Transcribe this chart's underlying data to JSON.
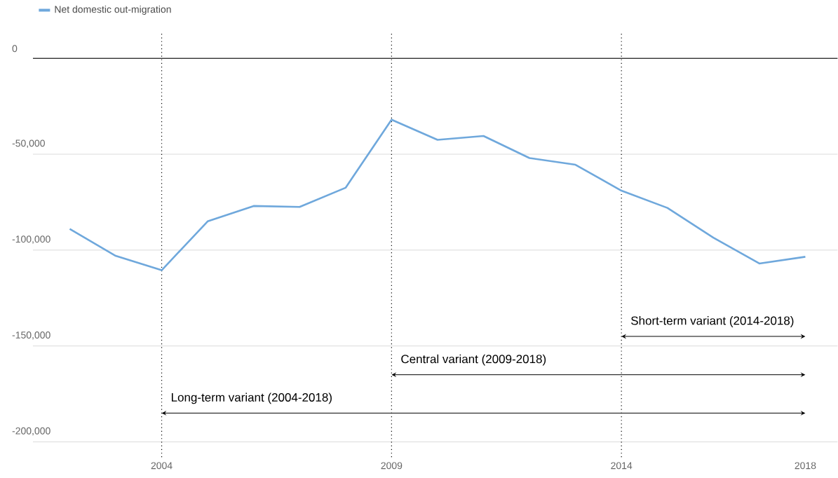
{
  "chart_data": {
    "type": "line",
    "x": [
      2002,
      2003,
      2004,
      2005,
      2006,
      2007,
      2008,
      2009,
      2010,
      2011,
      2012,
      2013,
      2014,
      2015,
      2016,
      2017,
      2018
    ],
    "series": [
      {
        "name": "Net domestic out-migration",
        "color": "#6fa8dc",
        "values": [
          -89000,
          -103000,
          -110500,
          -85000,
          -77000,
          -77500,
          -67500,
          -32000,
          -42500,
          -40500,
          -52000,
          -55500,
          -69000,
          -78000,
          -93500,
          -107000,
          -103500
        ]
      }
    ],
    "xlim": [
      2001.2,
      2018.7
    ],
    "ylim": [
      -208000,
      13000
    ],
    "xticks": [
      2004,
      2009,
      2014,
      2018
    ],
    "yticks": [
      0,
      {
        "value": -50000,
        "label": "-50,000"
      },
      {
        "value": -100000,
        "label": "-100,000"
      },
      {
        "value": -150000,
        "label": "-150,000"
      },
      {
        "value": -200000,
        "label": "-200,000"
      }
    ],
    "grid": "y",
    "legend": "top left",
    "ref_lines": [
      {
        "axis": "x",
        "value": 2004,
        "line_style": "dotted",
        "color": "#000000"
      },
      {
        "axis": "x",
        "value": 2009,
        "line_style": "dotted",
        "color": "#000000"
      },
      {
        "axis": "x",
        "value": 2014,
        "line_style": "dotted",
        "color": "#000000"
      },
      {
        "axis": "y",
        "value": 0,
        "color": "#333333"
      }
    ],
    "annotations": [
      {
        "text": "Short-term variant (2014-2018)",
        "x": 2014,
        "y": -145000
      },
      {
        "text": "Central variant (2009-2018)",
        "x": 2009,
        "y": -165000
      },
      {
        "text": "Long-term variant (2004-2018)",
        "x": 2004,
        "y": -185000
      }
    ]
  }
}
